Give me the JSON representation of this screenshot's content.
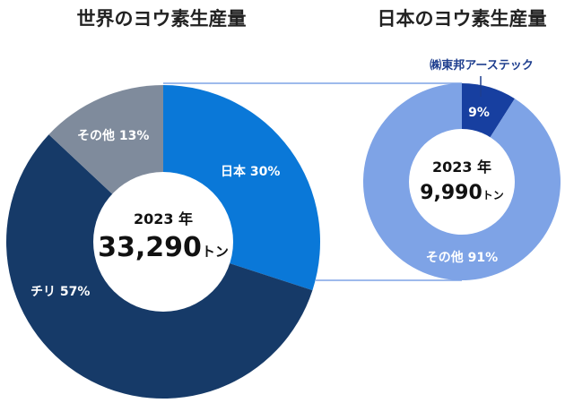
{
  "chart_data": [
    {
      "type": "pie",
      "title": "世界のヨウ素生産量",
      "center_year": "2023 年",
      "center_value": "33,290",
      "center_unit": "トン",
      "slices": [
        {
          "label": "日本 30%",
          "value": 30,
          "color": "#0a78d8"
        },
        {
          "label": "チリ 57%",
          "value": 57,
          "color": "#163a68"
        },
        {
          "label": "その他 13%",
          "value": 13,
          "color": "#7f8b9c"
        }
      ]
    },
    {
      "type": "pie",
      "title": "日本のヨウ素生産量",
      "center_year": "2023 年",
      "center_value": "9,990",
      "center_unit": "トン",
      "callout": "㈱東邦アーステック",
      "slices": [
        {
          "label": "9%",
          "value": 9,
          "color": "#173fa0"
        },
        {
          "label": "その他 91%",
          "value": 91,
          "color": "#7ea3e6"
        }
      ]
    }
  ]
}
